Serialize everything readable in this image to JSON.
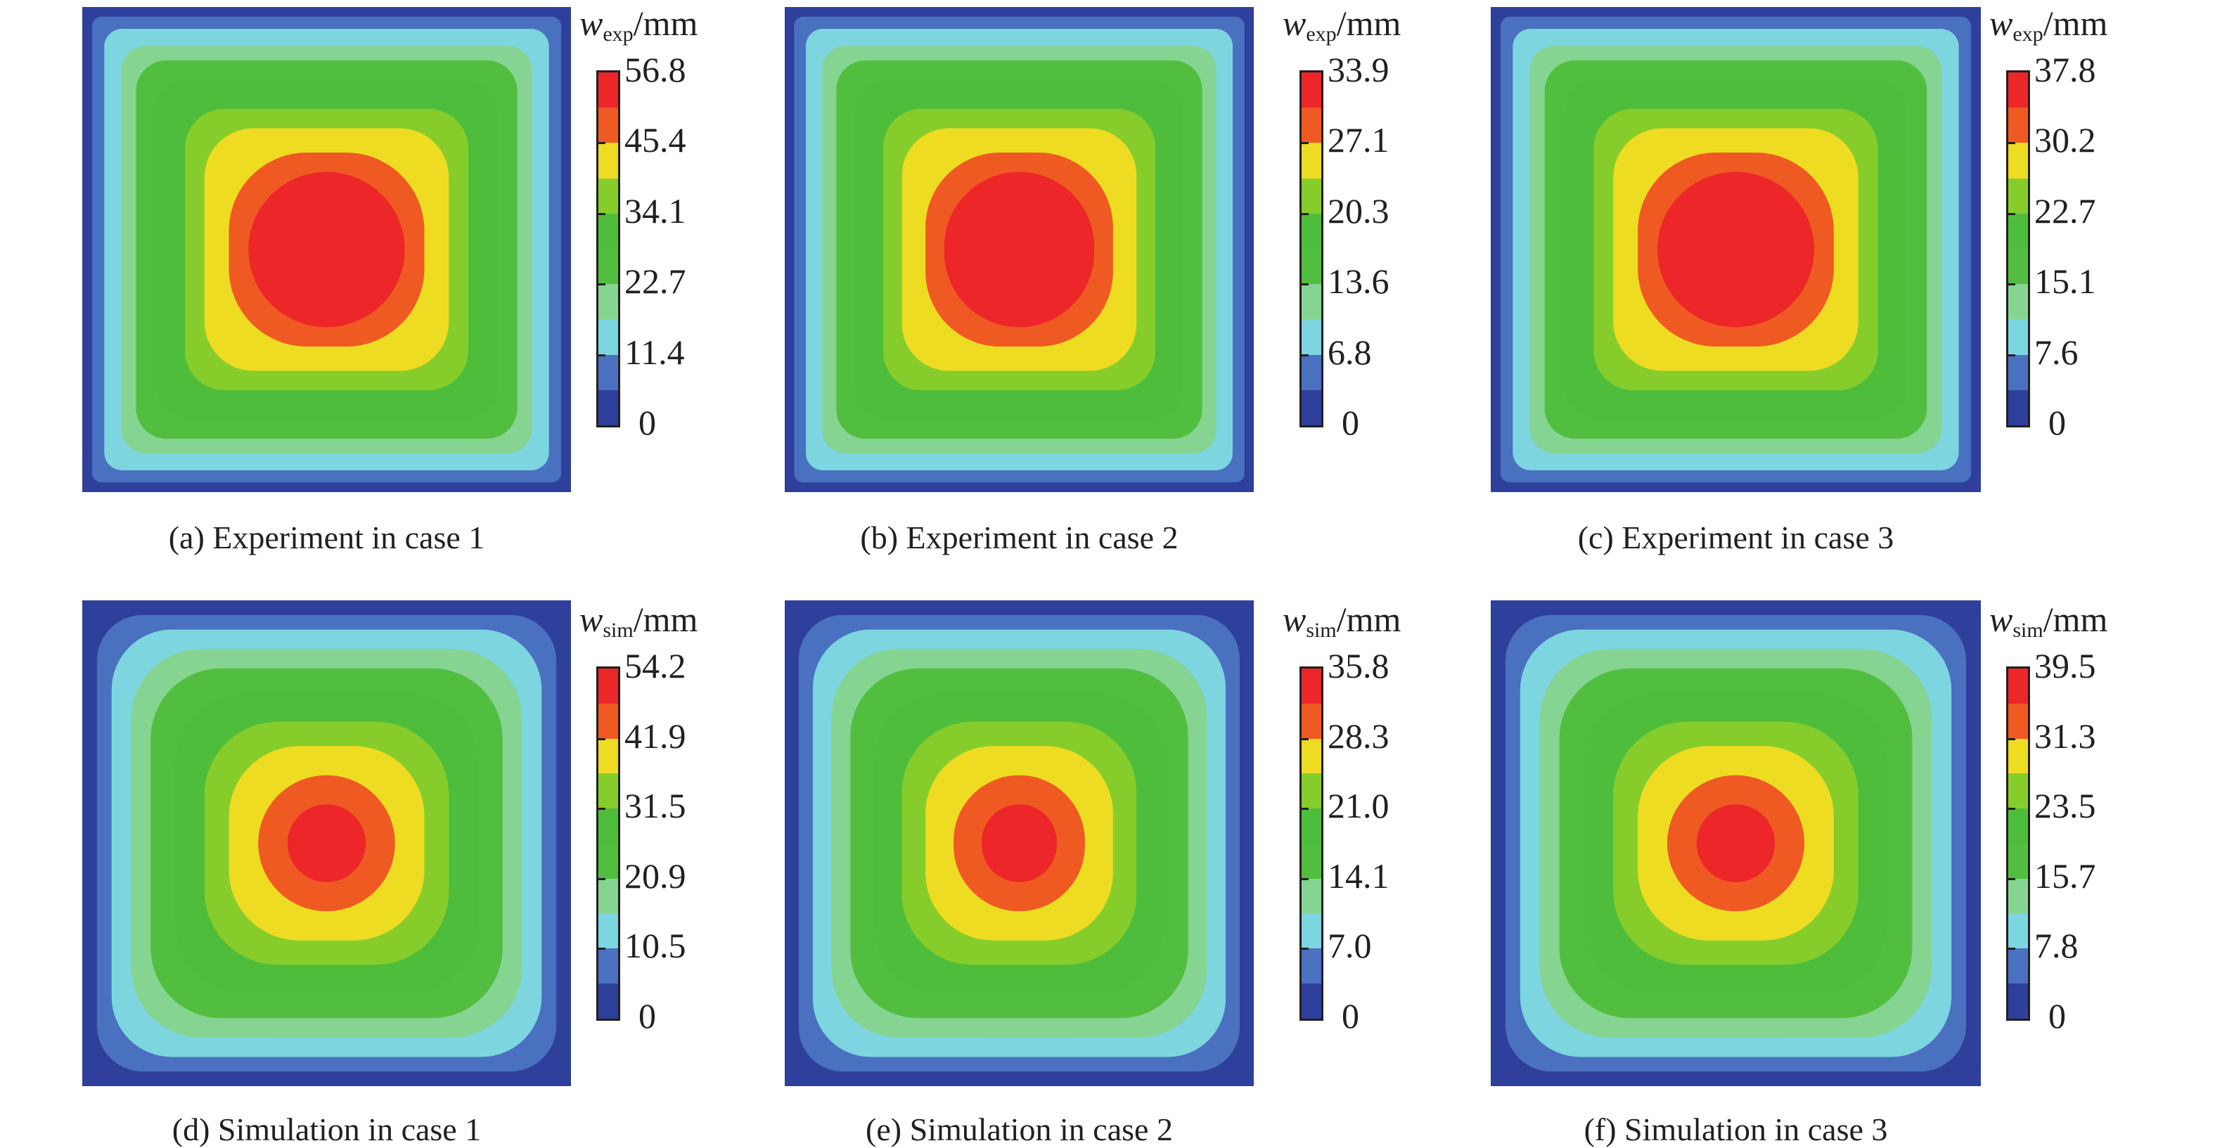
{
  "colorbar_colors": [
    "#2f3f9c",
    "#4a70c0",
    "#7dd5df",
    "#86d491",
    "#52be40",
    "#4fbd3c",
    "#86cd2c",
    "#eedc22",
    "#ef5a22",
    "#ec2629"
  ],
  "panels": [
    {
      "id": "a",
      "caption": "(a) Experiment in case 1",
      "symbol": "w",
      "subscript": "exp",
      "unit": "/mm",
      "ticks": [
        "56.8",
        "45.4",
        "34.1",
        "22.7",
        "11.4",
        "0"
      ],
      "kind": "experiment"
    },
    {
      "id": "b",
      "caption": "(b) Experiment in case 2",
      "symbol": "w",
      "subscript": "exp",
      "unit": "/mm",
      "ticks": [
        "33.9",
        "27.1",
        "20.3",
        "13.6",
        "6.8",
        "0"
      ],
      "kind": "experiment"
    },
    {
      "id": "c",
      "caption": "(c) Experiment in case 3",
      "symbol": "w",
      "subscript": "exp",
      "unit": "/mm",
      "ticks": [
        "37.8",
        "30.2",
        "22.7",
        "15.1",
        "7.6",
        "0"
      ],
      "kind": "experiment"
    },
    {
      "id": "d",
      "caption": "(d) Simulation in case 1",
      "symbol": "w",
      "subscript": "sim",
      "unit": "/mm",
      "ticks": [
        "54.2",
        "41.9",
        "31.5",
        "20.9",
        "10.5",
        "0"
      ],
      "kind": "simulation"
    },
    {
      "id": "e",
      "caption": "(e) Simulation in case 2",
      "symbol": "w",
      "subscript": "sim",
      "unit": "/mm",
      "ticks": [
        "35.8",
        "28.3",
        "21.0",
        "14.1",
        "7.0",
        "0"
      ],
      "kind": "simulation"
    },
    {
      "id": "f",
      "caption": "(f) Simulation in case 3",
      "symbol": "w",
      "subscript": "sim",
      "unit": "/mm",
      "ticks": [
        "39.5",
        "31.3",
        "23.5",
        "15.7",
        "7.8",
        "0"
      ],
      "kind": "simulation"
    }
  ]
}
